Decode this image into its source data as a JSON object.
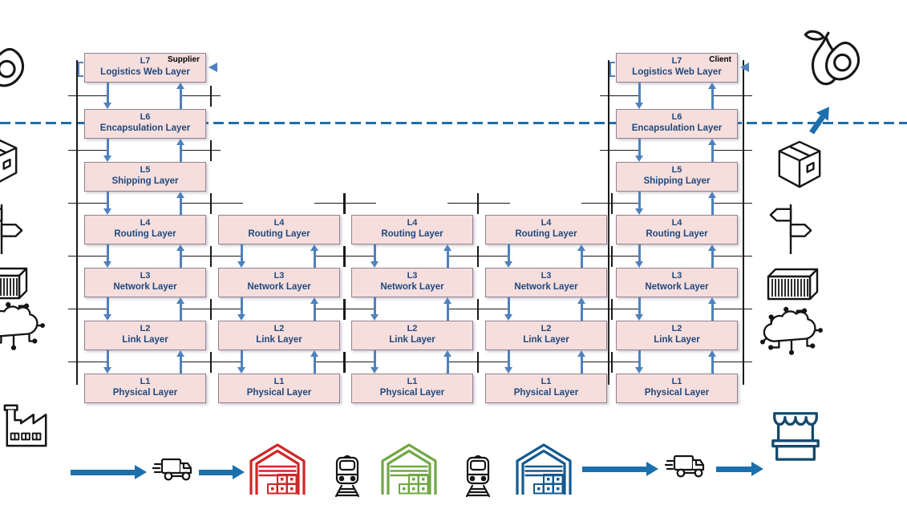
{
  "colors": {
    "box_fill": "#f6dedd",
    "box_border": "#8f8292",
    "layer_text": "#1f497d",
    "stack_arrow": "#4f81bd",
    "flow_blue": "#1c6fad",
    "divider_blue": "#1c6fad",
    "mark_black": "#1a1a1a",
    "icon_black": "#151515",
    "warehouse_red": "#d02627",
    "warehouse_green": "#70a844",
    "warehouse_blue": "#14598f",
    "stall_blue": "#14496e",
    "endpoint_label": "#000000"
  },
  "stacks": [
    {
      "id": "supplier",
      "role": "Supplier",
      "layers": [
        {
          "code": "L7",
          "name": "Logistics Web Layer"
        },
        {
          "code": "L6",
          "name": "Encapsulation Layer"
        },
        {
          "code": "L5",
          "name": "Shipping Layer"
        },
        {
          "code": "L4",
          "name": "Routing Layer"
        },
        {
          "code": "L3",
          "name": "Network Layer"
        },
        {
          "code": "L2",
          "name": "Link Layer"
        },
        {
          "code": "L1",
          "name": "Physical Layer"
        }
      ]
    },
    {
      "id": "intermediate-1",
      "layers": [
        {
          "code": "L4",
          "name": "Routing Layer"
        },
        {
          "code": "L3",
          "name": "Network Layer"
        },
        {
          "code": "L2",
          "name": "Link Layer"
        },
        {
          "code": "L1",
          "name": "Physical Layer"
        }
      ]
    },
    {
      "id": "intermediate-2",
      "layers": [
        {
          "code": "L4",
          "name": "Routing Layer"
        },
        {
          "code": "L3",
          "name": "Network Layer"
        },
        {
          "code": "L2",
          "name": "Link Layer"
        },
        {
          "code": "L1",
          "name": "Physical Layer"
        }
      ]
    },
    {
      "id": "intermediate-3",
      "layers": [
        {
          "code": "L4",
          "name": "Routing Layer"
        },
        {
          "code": "L3",
          "name": "Network Layer"
        },
        {
          "code": "L2",
          "name": "Link Layer"
        },
        {
          "code": "L1",
          "name": "Physical Layer"
        }
      ]
    },
    {
      "id": "client",
      "role": "Client",
      "layers": [
        {
          "code": "L7",
          "name": "Logistics Web Layer"
        },
        {
          "code": "L6",
          "name": "Encapsulation Layer"
        },
        {
          "code": "L5",
          "name": "Shipping Layer"
        },
        {
          "code": "L4",
          "name": "Routing Layer"
        },
        {
          "code": "L3",
          "name": "Network Layer"
        },
        {
          "code": "L2",
          "name": "Link Layer"
        },
        {
          "code": "L1",
          "name": "Physical Layer"
        }
      ]
    }
  ],
  "left_icons": [
    "avocado",
    "package-box",
    "signpost",
    "shipping-container",
    "connected-cloud",
    "factory"
  ],
  "right_icons": [
    "avocado",
    "package-box",
    "signpost",
    "shipping-container",
    "connected-cloud",
    "market-stall"
  ],
  "bottom_flow": [
    "flow-arrow",
    "delivery-truck",
    "flow-arrow",
    "warehouse-red",
    "train",
    "warehouse-green",
    "train",
    "warehouse-blue",
    "flow-arrow",
    "delivery-truck",
    "flow-arrow"
  ],
  "divider": {
    "style": "dashed"
  }
}
